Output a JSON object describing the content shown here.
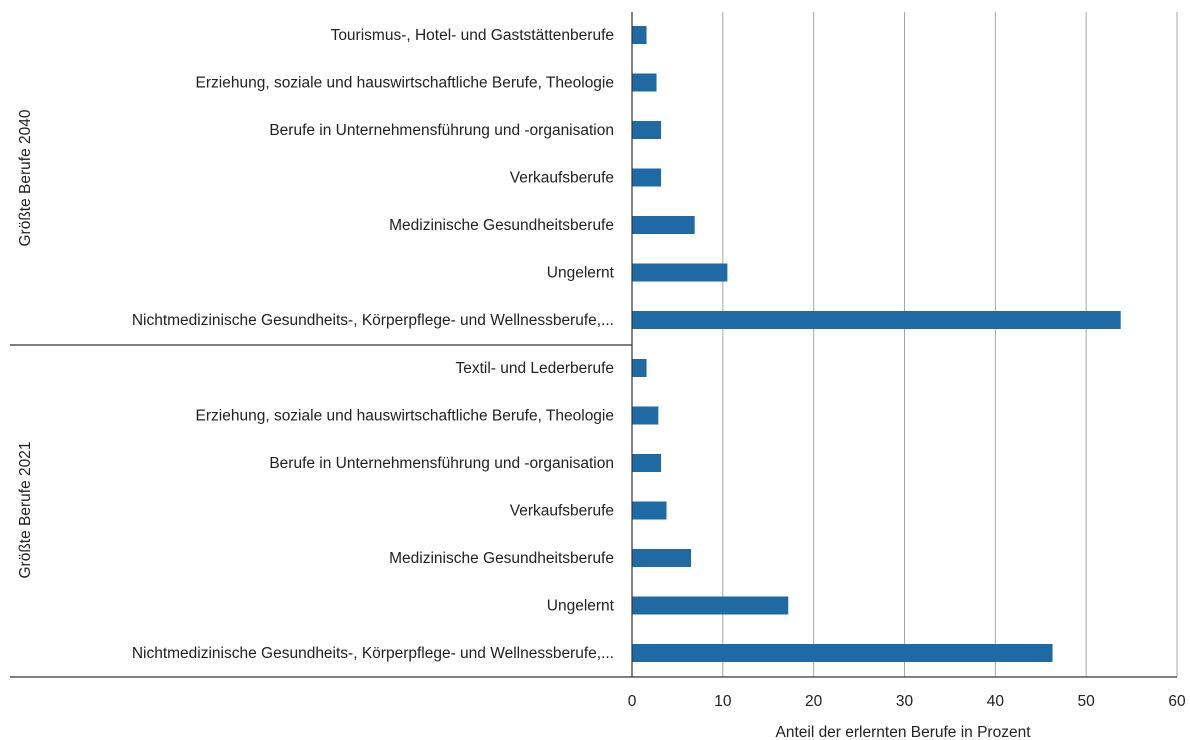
{
  "chart_data": {
    "type": "bar",
    "orientation": "horizontal",
    "xlabel": "Anteil der erlernten  Berufe in Prozent",
    "xlim": [
      0,
      60
    ],
    "xticks": [
      0,
      10,
      20,
      30,
      40,
      50,
      60
    ],
    "grid": true,
    "bar_color": "#1f6aa5",
    "groups": [
      {
        "name": "Größte Berufe 2040",
        "categories": [
          "Tourismus-, Hotel- und Gaststättenberufe",
          "Erziehung, soziale und hauswirtschaftliche Berufe, Theologie",
          "Berufe in Unternehmensführung und -organisation",
          "Verkaufsberufe",
          "Medizinische Gesundheitsberufe",
          "Ungelernt",
          "Nichtmedizinische Gesundheits-, Körperpflege- und Wellnessberufe,..."
        ],
        "values": [
          1.6,
          2.7,
          3.2,
          3.2,
          6.9,
          10.5,
          53.8
        ]
      },
      {
        "name": "Größte Berufe 2021",
        "categories": [
          "Textil- und Lederberufe",
          "Erziehung, soziale und hauswirtschaftliche Berufe, Theologie",
          "Berufe in Unternehmensführung und -organisation",
          "Verkaufsberufe",
          "Medizinische Gesundheitsberufe",
          "Ungelernt",
          "Nichtmedizinische Gesundheits-, Körperpflege- und Wellnessberufe,..."
        ],
        "values": [
          1.6,
          2.9,
          3.2,
          3.8,
          6.5,
          17.2,
          46.3
        ]
      }
    ]
  }
}
